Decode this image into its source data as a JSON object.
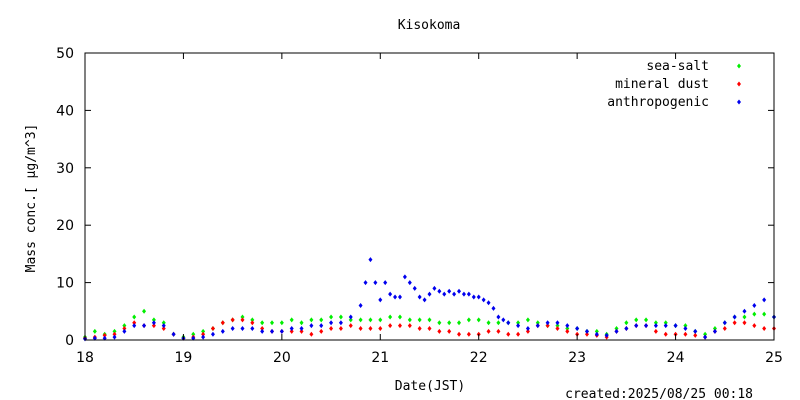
{
  "chart_data": {
    "type": "scatter",
    "title": "Kisokoma",
    "xlabel": "Date(JST)",
    "ylabel": "Mass conc.[ μg/m^3]",
    "created": "created:2025/08/25 00:18",
    "xlim": [
      18,
      25
    ],
    "ylim": [
      0,
      50
    ],
    "x_ticks": [
      18,
      19,
      20,
      21,
      22,
      23,
      24,
      25
    ],
    "y_ticks": [
      0,
      10,
      20,
      30,
      40,
      50
    ],
    "grid": false,
    "legend_position": "top-right",
    "series": [
      {
        "name": "sea-salt",
        "color": "#00ee00",
        "x": [
          18.0,
          18.1,
          18.2,
          18.3,
          18.4,
          18.5,
          18.6,
          18.7,
          18.8,
          18.9,
          19.0,
          19.1,
          19.2,
          19.3,
          19.4,
          19.5,
          19.6,
          19.7,
          19.8,
          19.9,
          20.0,
          20.1,
          20.2,
          20.3,
          20.4,
          20.5,
          20.6,
          20.7,
          20.8,
          20.9,
          21.0,
          21.1,
          21.2,
          21.3,
          21.4,
          21.5,
          21.6,
          21.7,
          21.8,
          21.9,
          22.0,
          22.1,
          22.2,
          22.3,
          22.4,
          22.5,
          22.6,
          22.7,
          22.8,
          22.9,
          23.0,
          23.1,
          23.2,
          23.3,
          23.4,
          23.5,
          23.6,
          23.7,
          23.8,
          23.9,
          24.0,
          24.1,
          24.2,
          24.3,
          24.4,
          24.5,
          24.6,
          24.7,
          24.8,
          24.9,
          25.0
        ],
        "y": [
          0.5,
          1.5,
          1.0,
          1.5,
          2.5,
          4.0,
          5.0,
          3.5,
          3.0,
          1.0,
          0.5,
          1.0,
          1.5,
          2.0,
          3.0,
          3.5,
          4.0,
          3.5,
          3.0,
          3.0,
          3.0,
          3.5,
          3.0,
          3.5,
          3.5,
          4.0,
          4.0,
          3.5,
          3.5,
          3.5,
          3.5,
          4.0,
          4.0,
          3.5,
          3.5,
          3.5,
          3.0,
          3.0,
          3.0,
          3.5,
          3.5,
          3.0,
          3.0,
          3.0,
          3.0,
          3.5,
          3.0,
          2.5,
          2.5,
          2.0,
          2.0,
          1.5,
          1.5,
          1.0,
          2.0,
          3.0,
          3.5,
          3.5,
          3.0,
          3.0,
          2.5,
          2.5,
          1.5,
          1.0,
          2.0,
          3.0,
          4.0,
          4.0,
          4.5,
          4.5,
          4.0
        ]
      },
      {
        "name": "mineral dust",
        "color": "#ff0000",
        "x": [
          18.0,
          18.1,
          18.2,
          18.3,
          18.4,
          18.5,
          18.6,
          18.7,
          18.8,
          18.9,
          19.0,
          19.1,
          19.2,
          19.3,
          19.4,
          19.5,
          19.6,
          19.7,
          19.8,
          19.9,
          20.0,
          20.1,
          20.2,
          20.3,
          20.4,
          20.5,
          20.6,
          20.7,
          20.8,
          20.9,
          21.0,
          21.1,
          21.2,
          21.3,
          21.4,
          21.5,
          21.6,
          21.7,
          21.8,
          21.9,
          22.0,
          22.1,
          22.2,
          22.3,
          22.4,
          22.5,
          22.6,
          22.7,
          22.8,
          22.9,
          23.0,
          23.1,
          23.2,
          23.3,
          23.4,
          23.5,
          23.6,
          23.7,
          23.8,
          23.9,
          24.0,
          24.1,
          24.2,
          24.3,
          24.4,
          24.5,
          24.6,
          24.7,
          24.8,
          24.9,
          25.0
        ],
        "y": [
          0.3,
          0.5,
          0.8,
          1.0,
          2.0,
          3.0,
          2.5,
          2.5,
          2.0,
          1.0,
          0.3,
          0.5,
          1.0,
          2.0,
          3.0,
          3.5,
          3.5,
          3.0,
          2.0,
          1.5,
          1.5,
          1.5,
          1.5,
          1.0,
          1.5,
          2.0,
          2.0,
          2.5,
          2.0,
          2.0,
          2.0,
          2.5,
          2.5,
          2.5,
          2.0,
          2.0,
          1.5,
          1.5,
          1.0,
          1.0,
          1.0,
          1.5,
          1.5,
          1.0,
          1.0,
          1.5,
          2.5,
          2.5,
          2.0,
          1.5,
          1.0,
          1.0,
          0.8,
          0.5,
          1.5,
          2.0,
          2.5,
          2.5,
          1.5,
          1.0,
          1.0,
          1.0,
          0.8,
          0.5,
          1.5,
          2.0,
          3.0,
          3.0,
          2.5,
          2.0,
          2.0
        ]
      },
      {
        "name": "anthropogenic",
        "color": "#0000ee",
        "x": [
          18.0,
          18.1,
          18.2,
          18.3,
          18.4,
          18.5,
          18.6,
          18.7,
          18.8,
          18.9,
          19.0,
          19.1,
          19.2,
          19.3,
          19.4,
          19.5,
          19.6,
          19.7,
          19.8,
          19.9,
          20.0,
          20.1,
          20.2,
          20.3,
          20.4,
          20.5,
          20.6,
          20.7,
          20.8,
          20.85,
          20.9,
          20.95,
          21.0,
          21.05,
          21.1,
          21.15,
          21.2,
          21.25,
          21.3,
          21.35,
          21.4,
          21.45,
          21.5,
          21.55,
          21.6,
          21.65,
          21.7,
          21.75,
          21.8,
          21.85,
          21.9,
          21.95,
          22.0,
          22.05,
          22.1,
          22.15,
          22.2,
          22.25,
          22.3,
          22.4,
          22.5,
          22.6,
          22.7,
          22.8,
          22.9,
          23.0,
          23.1,
          23.2,
          23.3,
          23.4,
          23.5,
          23.6,
          23.7,
          23.8,
          23.9,
          24.0,
          24.1,
          24.2,
          24.3,
          24.4,
          24.5,
          24.6,
          24.7,
          24.8,
          24.9,
          25.0
        ],
        "y": [
          0.2,
          0.3,
          0.3,
          0.5,
          1.5,
          2.5,
          2.5,
          3.0,
          2.5,
          1.0,
          0.3,
          0.3,
          0.5,
          1.0,
          1.5,
          2.0,
          2.0,
          2.0,
          1.5,
          1.5,
          1.5,
          2.0,
          2.0,
          2.5,
          2.5,
          3.0,
          3.0,
          4.0,
          6.0,
          10.0,
          14.0,
          10.0,
          7.0,
          10.0,
          8.0,
          7.5,
          7.5,
          11.0,
          10.0,
          9.0,
          7.5,
          7.0,
          8.0,
          9.0,
          8.5,
          8.0,
          8.5,
          8.0,
          8.5,
          8.0,
          8.0,
          7.5,
          7.5,
          7.0,
          6.5,
          5.5,
          4.0,
          3.5,
          3.0,
          2.5,
          2.0,
          2.5,
          3.0,
          3.0,
          2.5,
          2.0,
          1.5,
          1.0,
          0.8,
          1.5,
          2.0,
          2.5,
          2.5,
          2.5,
          2.5,
          2.5,
          2.0,
          1.5,
          0.5,
          1.5,
          3.0,
          4.0,
          5.0,
          6.0,
          7.0,
          4.0
        ]
      }
    ]
  }
}
